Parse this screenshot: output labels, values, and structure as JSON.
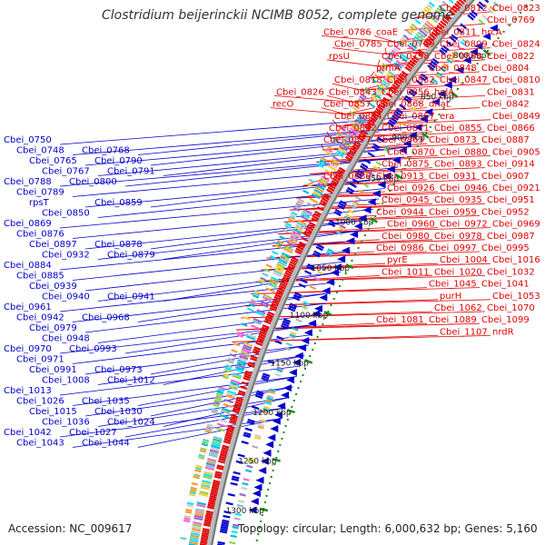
{
  "title": "Clostridium beijerinckii NCIMB 8052, complete genome",
  "footer": {
    "accession": "Accession: NC_009617",
    "summary": "Topology: circular; Length: 6,000,632 bp; Genes: 5,160"
  },
  "colors": {
    "forward": "#e00000",
    "reverse": "#0000cc",
    "backbone": "#888888",
    "tick": "#1a8a1a"
  },
  "ticks": [
    "800 kbp",
    "850 kbp",
    "900 kbp",
    "950 kbp",
    "1000 kbp",
    "1050 kbp",
    "1100 kbp",
    "1150 kbp",
    "1200 kbp",
    "1250 kbp",
    "1300 kbp"
  ],
  "right_labels": [
    "Cbei_0812",
    "Cbei_0823",
    "Cbei_0769",
    "Cbei_0786",
    "coaE",
    "Cbei_0811",
    "hrcA",
    "Cbei_0785",
    "Cbei_0799",
    "Cbei_0809",
    "Cbei_0824",
    "rpsU",
    "Cbei_0798",
    "Cbei_0808",
    "Cbei_0822",
    "prmA",
    "Cbei_0848",
    "Cbei_0804",
    "Cbei_0818",
    "Cbei_0832",
    "Cbei_0847",
    "Cbei_0810",
    "Cbei_0826",
    "Cbei_0843",
    "Cbei_0856",
    "holA",
    "Cbei_0831",
    "recO",
    "Cbei_0857",
    "Cbei_0868",
    "dnaL",
    "Cbei_0842",
    "Cbei_0854",
    "Cbei_0867",
    "era",
    "Cbei_0849",
    "Cbei_0862",
    "Cbei_0871",
    "Cbei_0855",
    "Cbei_0866",
    "Cbei_0877",
    "Cbei_0863",
    "Cbei_0873",
    "Cbei_0887",
    "Cbei_0870",
    "Cbei_0880",
    "Cbei_0905",
    "Cbei_0875",
    "Cbei_0893",
    "Cbei_0914",
    "Cbei_0889",
    "Cbei_0913",
    "Cbei_0931",
    "Cbei_0907",
    "Cbei_0926",
    "Cbei_0946",
    "Cbei_0921",
    "Cbei_0945",
    "Cbei_0935",
    "Cbei_0951",
    "Cbei_0944",
    "Cbei_0959",
    "Cbei_0952",
    "Cbei_0960",
    "Cbei_0972",
    "Cbei_0969",
    "Cbei_0980",
    "Cbei_0978",
    "Cbei_0987",
    "Cbei_0986",
    "Cbei_0997",
    "Cbei_0995",
    "pyrE",
    "Cbei_1004",
    "Cbei_1016",
    "Cbei_1011",
    "Cbei_1020",
    "Cbei_1032",
    "Cbei_1045",
    "Cbei_1041",
    "purH",
    "Cbei_1053",
    "Cbei_1062",
    "Cbei_1070",
    "Cbei_1081",
    "Cbei_1089",
    "Cbei_1099",
    "Cbei_1107",
    "nrdR"
  ],
  "left_labels": [
    "Cbei_0750",
    "Cbei_0748",
    "Cbei_0768",
    "Cbei_0765",
    "Cbei_0790",
    "Cbei_0767",
    "Cbei_0791",
    "Cbei_0788",
    "Cbei_0800",
    "Cbei_0789",
    "rpsT",
    "Cbei_0859",
    "Cbei_0850",
    "Cbei_0869",
    "Cbei_0876",
    "Cbei_0897",
    "Cbei_0878",
    "Cbei_0932",
    "Cbei_0879",
    "Cbei_0884",
    "Cbei_0885",
    "Cbei_0939",
    "Cbei_0940",
    "Cbei_0941",
    "Cbei_0961",
    "Cbei_0942",
    "Cbei_0968",
    "Cbei_0979",
    "Cbei_0948",
    "Cbei_0970",
    "Cbei_0993",
    "Cbei_0971",
    "Cbei_0991",
    "Cbei_0973",
    "Cbei_1008",
    "Cbei_1012",
    "Cbei_1013",
    "Cbei_1026",
    "Cbei_1035",
    "Cbei_1015",
    "Cbei_1030",
    "Cbei_1036",
    "Cbei_1024",
    "Cbei_1042",
    "Cbei_1027",
    "Cbei_1043",
    "Cbei_1044"
  ]
}
